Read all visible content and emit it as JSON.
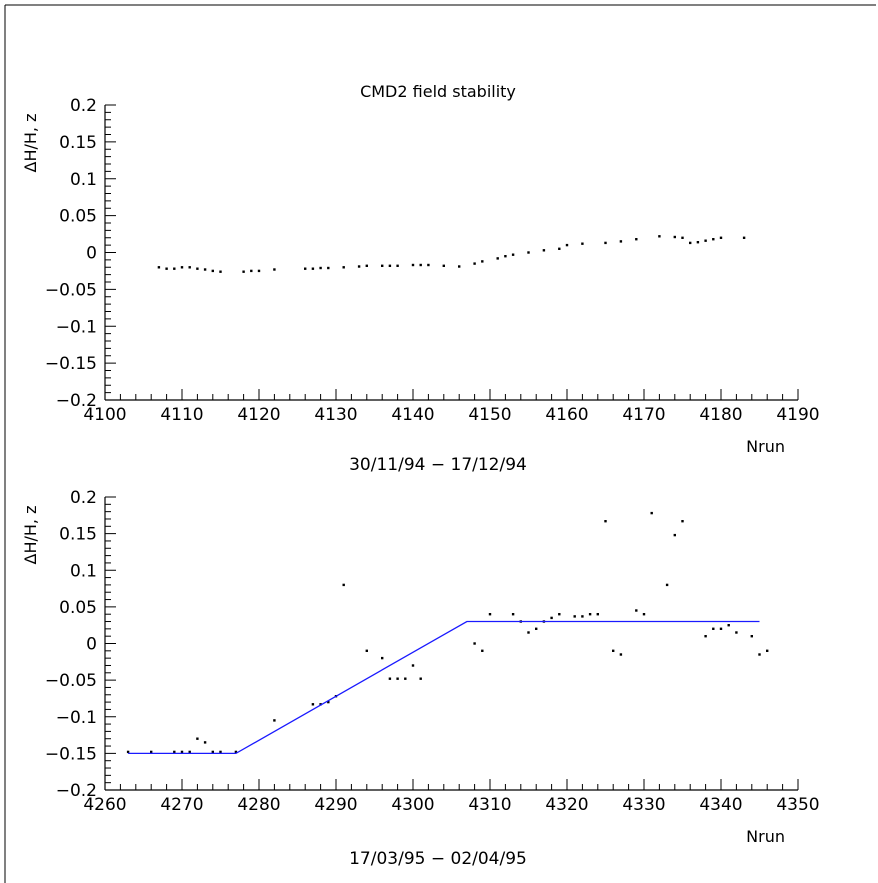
{
  "chart_data": [
    {
      "type": "scatter",
      "title": "CMD2 field stability",
      "ylabel": "ΔH/H, z",
      "xlabel": "Nrun",
      "caption": "30/11/94 − 17/12/94",
      "xlim": [
        4100,
        4190
      ],
      "ylim": [
        -0.2,
        0.2
      ],
      "x_ticks": [
        "4100",
        "4110",
        "4120",
        "4130",
        "4140",
        "4150",
        "4160",
        "4170",
        "4180",
        "4190"
      ],
      "y_ticks": [
        "−0.2",
        "−0.15",
        "−0.1",
        "−0.05",
        "0",
        "0.05",
        "0.1",
        "0.15",
        "0.2"
      ],
      "x_tick_values": [
        4100,
        4110,
        4120,
        4130,
        4140,
        4150,
        4160,
        4170,
        4180,
        4190
      ],
      "y_tick_values": [
        -0.2,
        -0.15,
        -0.1,
        -0.05,
        0,
        0.05,
        0.1,
        0.15,
        0.2
      ],
      "series": [
        {
          "points": [
            [
              4107,
              -0.02
            ],
            [
              4108,
              -0.022
            ],
            [
              4109,
              -0.022
            ],
            [
              4110,
              -0.02
            ],
            [
              4111,
              -0.02
            ],
            [
              4112,
              -0.022
            ],
            [
              4113,
              -0.023
            ],
            [
              4114,
              -0.025
            ],
            [
              4115,
              -0.026
            ],
            [
              4118,
              -0.026
            ],
            [
              4119,
              -0.025
            ],
            [
              4120,
              -0.025
            ],
            [
              4122,
              -0.023
            ],
            [
              4126,
              -0.022
            ],
            [
              4127,
              -0.022
            ],
            [
              4128,
              -0.021
            ],
            [
              4129,
              -0.021
            ],
            [
              4131,
              -0.02
            ],
            [
              4133,
              -0.019
            ],
            [
              4134,
              -0.018
            ],
            [
              4136,
              -0.018
            ],
            [
              4137,
              -0.018
            ],
            [
              4138,
              -0.018
            ],
            [
              4140,
              -0.017
            ],
            [
              4141,
              -0.017
            ],
            [
              4142,
              -0.017
            ],
            [
              4144,
              -0.018
            ],
            [
              4146,
              -0.019
            ],
            [
              4148,
              -0.015
            ],
            [
              4149,
              -0.012
            ],
            [
              4151,
              -0.008
            ],
            [
              4152,
              -0.005
            ],
            [
              4153,
              -0.003
            ],
            [
              4155,
              0.0
            ],
            [
              4157,
              0.003
            ],
            [
              4159,
              0.005
            ],
            [
              4160,
              0.01
            ],
            [
              4162,
              0.012
            ],
            [
              4165,
              0.013
            ],
            [
              4167,
              0.015
            ],
            [
              4169,
              0.018
            ],
            [
              4172,
              0.022
            ],
            [
              4174,
              0.021
            ],
            [
              4175,
              0.02
            ],
            [
              4176,
              0.013
            ],
            [
              4177,
              0.014
            ],
            [
              4178,
              0.016
            ],
            [
              4179,
              0.018
            ],
            [
              4180,
              0.02
            ],
            [
              4183,
              0.02
            ]
          ]
        }
      ]
    },
    {
      "type": "scatter",
      "title": "",
      "ylabel": "ΔH/H, z",
      "xlabel": "Nrun",
      "caption": "17/03/95 − 02/04/95",
      "xlim": [
        4260,
        4350
      ],
      "ylim": [
        -0.2,
        0.2
      ],
      "x_ticks": [
        "4260",
        "4270",
        "4280",
        "4290",
        "4300",
        "4310",
        "4320",
        "4330",
        "4340",
        "4350"
      ],
      "y_ticks": [
        "−0.2",
        "−0.15",
        "−0.1",
        "−0.05",
        "0",
        "0.05",
        "0.1",
        "0.15",
        "0.2"
      ],
      "x_tick_values": [
        4260,
        4270,
        4280,
        4290,
        4300,
        4310,
        4320,
        4330,
        4340,
        4350
      ],
      "y_tick_values": [
        -0.2,
        -0.15,
        -0.1,
        -0.05,
        0,
        0.05,
        0.1,
        0.15,
        0.2
      ],
      "series": [
        {
          "points": [
            [
              4263,
              -0.148
            ],
            [
              4266,
              -0.148
            ],
            [
              4269,
              -0.148
            ],
            [
              4270,
              -0.148
            ],
            [
              4271,
              -0.148
            ],
            [
              4272,
              -0.13
            ],
            [
              4273,
              -0.135
            ],
            [
              4274,
              -0.148
            ],
            [
              4275,
              -0.148
            ],
            [
              4277,
              -0.148
            ],
            [
              4282,
              -0.105
            ],
            [
              4287,
              -0.083
            ],
            [
              4288,
              -0.083
            ],
            [
              4289,
              -0.08
            ],
            [
              4290,
              -0.072
            ],
            [
              4291,
              0.08
            ],
            [
              4294,
              -0.01
            ],
            [
              4296,
              -0.02
            ],
            [
              4297,
              -0.048
            ],
            [
              4298,
              -0.048
            ],
            [
              4299,
              -0.048
            ],
            [
              4300,
              -0.03
            ],
            [
              4301,
              -0.048
            ],
            [
              4308,
              0.0
            ],
            [
              4309,
              -0.01
            ],
            [
              4310,
              0.04
            ],
            [
              4313,
              0.04
            ],
            [
              4314,
              0.03
            ],
            [
              4315,
              0.015
            ],
            [
              4316,
              0.02
            ],
            [
              4317,
              0.03
            ],
            [
              4318,
              0.035
            ],
            [
              4319,
              0.04
            ],
            [
              4321,
              0.037
            ],
            [
              4322,
              0.037
            ],
            [
              4323,
              0.04
            ],
            [
              4324,
              0.04
            ],
            [
              4325,
              0.167
            ],
            [
              4326,
              -0.01
            ],
            [
              4327,
              -0.015
            ],
            [
              4329,
              0.045
            ],
            [
              4330,
              0.04
            ],
            [
              4331,
              0.178
            ],
            [
              4333,
              0.08
            ],
            [
              4334,
              0.148
            ],
            [
              4335,
              0.167
            ],
            [
              4338,
              0.01
            ],
            [
              4339,
              0.02
            ],
            [
              4340,
              0.02
            ],
            [
              4341,
              0.025
            ],
            [
              4342,
              0.015
            ],
            [
              4344,
              0.01
            ],
            [
              4345,
              -0.015
            ],
            [
              4346,
              -0.01
            ]
          ]
        },
        {
          "type": "line",
          "color": "#1a1aff",
          "points": [
            [
              4263,
              -0.15
            ],
            [
              4277,
              -0.15
            ],
            [
              4307,
              0.03
            ],
            [
              4345,
              0.03
            ]
          ]
        }
      ]
    }
  ]
}
